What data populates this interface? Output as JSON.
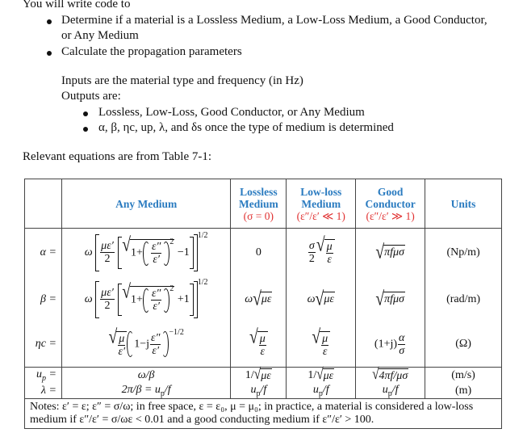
{
  "intro": {
    "heading": "You will write code to",
    "bullets": [
      "Determine if a material is a Lossless Medium, a Low-Loss Medium, a Good Conductor,",
      "or Any Medium",
      "Calculate the propagation parameters"
    ],
    "inputs": "Inputs are the material type and frequency (in Hz)",
    "outputs": "Outputs are:",
    "output_bullets": [
      "Lossless, Low-Loss, Good Conductor, or Any Medium",
      "α, β, ηc, up, λ, and δs once the type of medium is determined"
    ],
    "relevant": "Relevant equations are from Table 7-1:"
  },
  "table": {
    "headers": {
      "any": "Any Medium",
      "lossless": "Lossless Medium",
      "lossless_cond": "(σ = 0)",
      "lowloss": "Low-loss Medium",
      "lowloss_cond": "(ε″/ε′ ≪ 1)",
      "good": "Good Conductor",
      "good_cond": "(ε″/ε′ ≫ 1)",
      "units": "Units"
    },
    "sym": {
      "omega": "ω",
      "mu_eps_p": "με′",
      "two": "2",
      "one_plus": "1+",
      "eps_pp": "ε″",
      "eps_p": "ε′",
      "sq": "2",
      "minus_one": "−1",
      "plus_one": "+1",
      "half": "1/2",
      "sigma": "σ",
      "mu": "μ",
      "eps": "ε",
      "pi_f_mu_sigma": "πfμσ",
      "mu_eps": "με",
      "one_minus_j": "1−j",
      "neg_half": "−1/2",
      "one_plus_j": "(1+j)",
      "alpha": "α",
      "one_over": "1/",
      "four_pi": "4πf/μσ"
    },
    "rows": {
      "alpha": {
        "label": "α =",
        "lossless": "0",
        "units": "(Np/m)"
      },
      "beta": {
        "label": "β =",
        "units": "(rad/m)"
      },
      "eta": {
        "label": "ηc =",
        "units": "(Ω)"
      },
      "up": {
        "label_u": "u",
        "label_sub": "p",
        "label_eq": "=",
        "any": "ω/β",
        "units": "(m/s)"
      },
      "lambda": {
        "label": "λ =",
        "any_pre": "2π/β = ",
        "u": "u",
        "sub": "p",
        "f": "/f",
        "units": "(m)"
      }
    },
    "notes": "Notes:  ε′ = ε;  ε″ = σ/ω; in free space, ε = ε₀,  μ = μ₀; in practice, a material is considered a low-loss medium if ε″/ε′ = σ/ωε < 0.01 and a good conducting medium if ε″/ε′ > 100."
  }
}
